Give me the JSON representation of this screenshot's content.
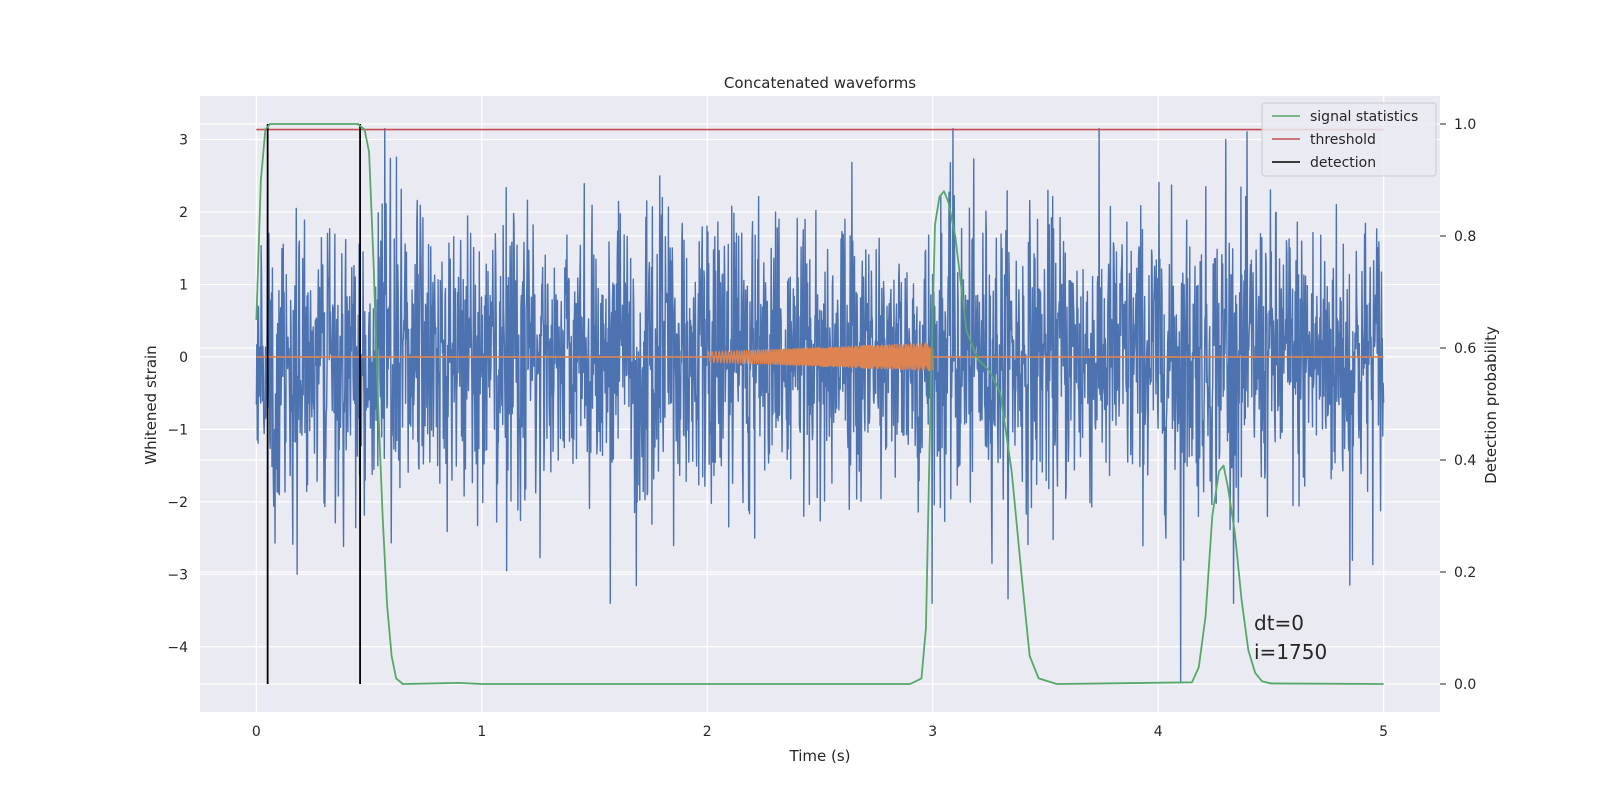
{
  "chart_data": {
    "type": "line",
    "title": "Concatenated waveforms",
    "xlabel": "Time (s)",
    "ylabel": "Whitened strain",
    "ylabel_right": "Detection probability",
    "xlim": [
      -0.25,
      5.25
    ],
    "ylim": [
      -4.9,
      3.6
    ],
    "ylim_right": [
      -0.05,
      1.05
    ],
    "x_ticks": [
      0,
      1,
      2,
      3,
      4,
      5
    ],
    "y_ticks": [
      -4,
      -3,
      -2,
      -1,
      0,
      1,
      2,
      3
    ],
    "y_ticks_right": [
      0.0,
      0.2,
      0.4,
      0.6,
      0.8,
      1.0
    ],
    "grid": true,
    "legend_position": "top-right",
    "colors": {
      "strain": "#4c72b0",
      "injection": "#dd8452",
      "signal_statistics": "#55a868",
      "threshold": "#c44e52",
      "detection": "#000000",
      "plot_background": "#eaeaf2",
      "grid": "#ffffff"
    },
    "series": [
      {
        "name": "",
        "axis": "left",
        "description_key": "whitened-strain-noise",
        "x_range": [
          0,
          5
        ],
        "typical_amplitude": 1.2,
        "extreme_values": [
          [
            0.05,
            2.3
          ],
          [
            0.18,
            -3.0
          ],
          [
            1.57,
            -3.4
          ],
          [
            0.57,
            3.15
          ],
          [
            3.09,
            3.15
          ],
          [
            4.1,
            -4.5
          ],
          [
            4.85,
            -3.15
          ],
          [
            4.3,
            3.0
          ]
        ]
      },
      {
        "name": "",
        "axis": "left",
        "description_key": "injected-chirp",
        "x_range": [
          2.0,
          3.0
        ],
        "amplitude_start": 0.07,
        "amplitude_end": 0.2
      },
      {
        "name": "signal statistics",
        "axis": "right",
        "x": [
          0.0,
          0.02,
          0.04,
          0.06,
          0.08,
          0.45,
          0.48,
          0.5,
          0.52,
          0.54,
          0.56,
          0.58,
          0.6,
          0.62,
          0.65,
          0.9,
          1.0,
          2.9,
          2.95,
          2.97,
          2.99,
          3.01,
          3.03,
          3.05,
          3.07,
          3.1,
          3.15,
          3.2,
          3.25,
          3.3,
          3.35,
          3.4,
          3.43,
          3.47,
          3.55,
          4.15,
          4.18,
          4.21,
          4.24,
          4.27,
          4.29,
          4.31,
          4.34,
          4.37,
          4.4,
          4.43,
          4.46,
          4.5,
          5.0
        ],
        "y": [
          0.65,
          0.9,
          0.99,
          1.0,
          1.0,
          1.0,
          0.99,
          0.95,
          0.75,
          0.5,
          0.3,
          0.14,
          0.05,
          0.01,
          0.0,
          0.002,
          0.0,
          0.0,
          0.01,
          0.1,
          0.5,
          0.82,
          0.87,
          0.88,
          0.86,
          0.8,
          0.63,
          0.58,
          0.56,
          0.52,
          0.38,
          0.17,
          0.05,
          0.01,
          0.0,
          0.003,
          0.03,
          0.12,
          0.3,
          0.38,
          0.39,
          0.35,
          0.27,
          0.15,
          0.06,
          0.02,
          0.005,
          0.001,
          0.0
        ]
      },
      {
        "name": "threshold",
        "axis": "right",
        "x": [
          0,
          5
        ],
        "y": [
          0.99,
          0.99
        ]
      },
      {
        "name": "detection",
        "axis": "right",
        "x": [
          0.05,
          0.46
        ],
        "y_range": [
          0.0,
          1.0
        ]
      }
    ],
    "annotations": [
      "dt=0",
      "i=1750"
    ]
  }
}
